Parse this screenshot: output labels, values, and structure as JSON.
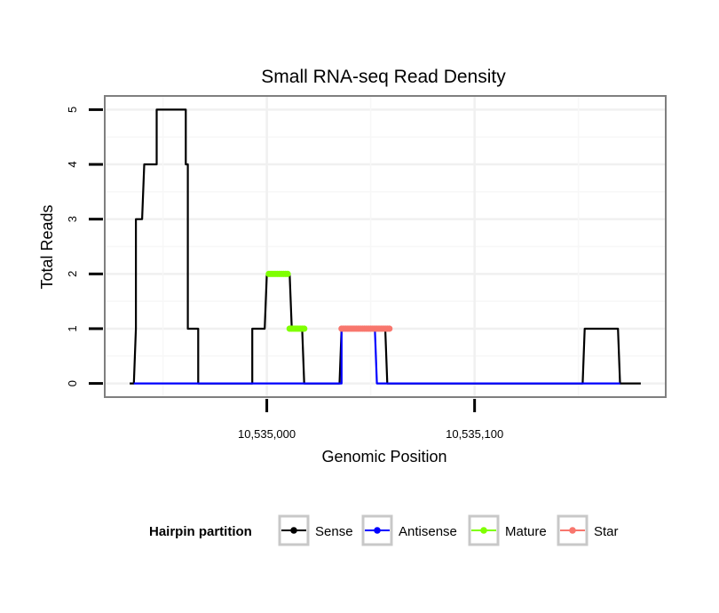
{
  "chart_data": {
    "type": "line",
    "title": "Small RNA-seq Read Density",
    "xlabel": "Genomic Position",
    "ylabel": "Total Reads",
    "xlim": [
      10534922,
      10535192
    ],
    "ylim": [
      -0.25,
      5.25
    ],
    "x_ticks": [
      10535000,
      10535100
    ],
    "x_tick_labels": [
      "10,535,000",
      "10,535,100"
    ],
    "y_ticks": [
      0,
      1,
      2,
      3,
      4,
      5
    ],
    "y_tick_labels": [
      "0",
      "1",
      "2",
      "3",
      "4",
      "5"
    ],
    "grid": true,
    "legend": {
      "title": "Hairpin partition",
      "position": "bottom",
      "entries": [
        "Sense",
        "Antisense",
        "Mature",
        "Star"
      ]
    },
    "series": [
      {
        "name": "Sense",
        "color": "#000000",
        "style": "line",
        "x": [
          10534934,
          10534936,
          10534937,
          10534937,
          10534940,
          10534941,
          10534941,
          10534946,
          10534947,
          10534947,
          10534960,
          10534961,
          10534961,
          10534962,
          10534962,
          10534966,
          10534967,
          10534967,
          10534992,
          10534993,
          10534993,
          10534999,
          10535000,
          10535000,
          10535011,
          10535012,
          10535012,
          10535017,
          10535018,
          10535018,
          10535035,
          10535036,
          10535036,
          10535057,
          10535058,
          10535058,
          10535152,
          10535153,
          10535153,
          10535169,
          10535170,
          10535170,
          10535180
        ],
        "y": [
          0,
          0,
          1,
          3,
          3,
          4,
          4,
          4,
          4,
          5,
          5,
          5,
          4,
          4,
          1,
          1,
          1,
          0,
          0,
          0,
          1,
          1,
          2,
          2,
          2,
          1,
          1,
          1,
          0,
          0,
          0,
          1,
          1,
          1,
          0,
          0,
          0,
          1,
          1,
          1,
          0,
          0,
          0
        ]
      },
      {
        "name": "Antisense",
        "color": "#0000ff",
        "style": "line",
        "x": [
          10534936,
          10535018,
          10535035,
          10535036,
          10535036,
          10535052,
          10535053,
          10535153,
          10535170
        ],
        "y": [
          0,
          0,
          0,
          0,
          1,
          1,
          0,
          0,
          0
        ]
      },
      {
        "name": "Mature",
        "color": "#7fff00",
        "style": "points",
        "x": [
          10535001,
          10535002,
          10535003,
          10535004,
          10535005,
          10535006,
          10535007,
          10535008,
          10535009,
          10535010,
          10535011,
          10535012,
          10535013,
          10535014,
          10535015,
          10535016,
          10535017,
          10535018
        ],
        "y": [
          2,
          2,
          2,
          2,
          2,
          2,
          2,
          2,
          2,
          2,
          1,
          1,
          1,
          1,
          1,
          1,
          1,
          1
        ]
      },
      {
        "name": "Star",
        "color": "#f8766d",
        "style": "points",
        "x": [
          10535036,
          10535037,
          10535038,
          10535039,
          10535040,
          10535041,
          10535042,
          10535043,
          10535044,
          10535045,
          10535046,
          10535047,
          10535048,
          10535049,
          10535050,
          10535051,
          10535052,
          10535053,
          10535054,
          10535055,
          10535056,
          10535057,
          10535058,
          10535059
        ],
        "y": [
          1,
          1,
          1,
          1,
          1,
          1,
          1,
          1,
          1,
          1,
          1,
          1,
          1,
          1,
          1,
          1,
          1,
          1,
          1,
          1,
          1,
          1,
          1,
          1
        ]
      }
    ]
  }
}
